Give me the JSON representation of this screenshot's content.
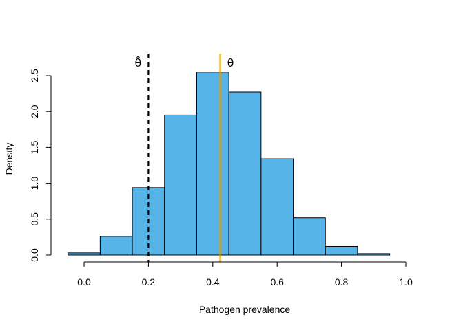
{
  "chart_data": {
    "type": "bar",
    "title": "",
    "xlabel": "Pathogen prevalence",
    "ylabel": "Density",
    "xlim": [
      -0.05,
      1.05
    ],
    "ylim": [
      0,
      2.75
    ],
    "x_ticks": [
      "0.0",
      "0.2",
      "0.4",
      "0.6",
      "0.8",
      "1.0"
    ],
    "y_ticks": [
      "0.0",
      "0.5",
      "1.0",
      "1.5",
      "2.0",
      "2.5"
    ],
    "grid": false,
    "bar_color": "#56B4E9",
    "bins": [
      {
        "start": -0.05,
        "end": 0.05,
        "density": 0.03
      },
      {
        "start": 0.05,
        "end": 0.15,
        "density": 0.26
      },
      {
        "start": 0.15,
        "end": 0.25,
        "density": 0.94
      },
      {
        "start": 0.25,
        "end": 0.35,
        "density": 1.95
      },
      {
        "start": 0.35,
        "end": 0.45,
        "density": 2.55
      },
      {
        "start": 0.45,
        "end": 0.55,
        "density": 2.27
      },
      {
        "start": 0.55,
        "end": 0.65,
        "density": 1.34
      },
      {
        "start": 0.65,
        "end": 0.75,
        "density": 0.52
      },
      {
        "start": 0.75,
        "end": 0.85,
        "density": 0.12
      },
      {
        "start": 0.85,
        "end": 0.95,
        "density": 0.02
      }
    ],
    "reference_lines": [
      {
        "label": "θ̂",
        "x": 0.2,
        "style": "dashed",
        "color": "#000000"
      },
      {
        "label": "θ",
        "x": 0.423,
        "style": "solid",
        "color": "#E69F00"
      }
    ]
  }
}
